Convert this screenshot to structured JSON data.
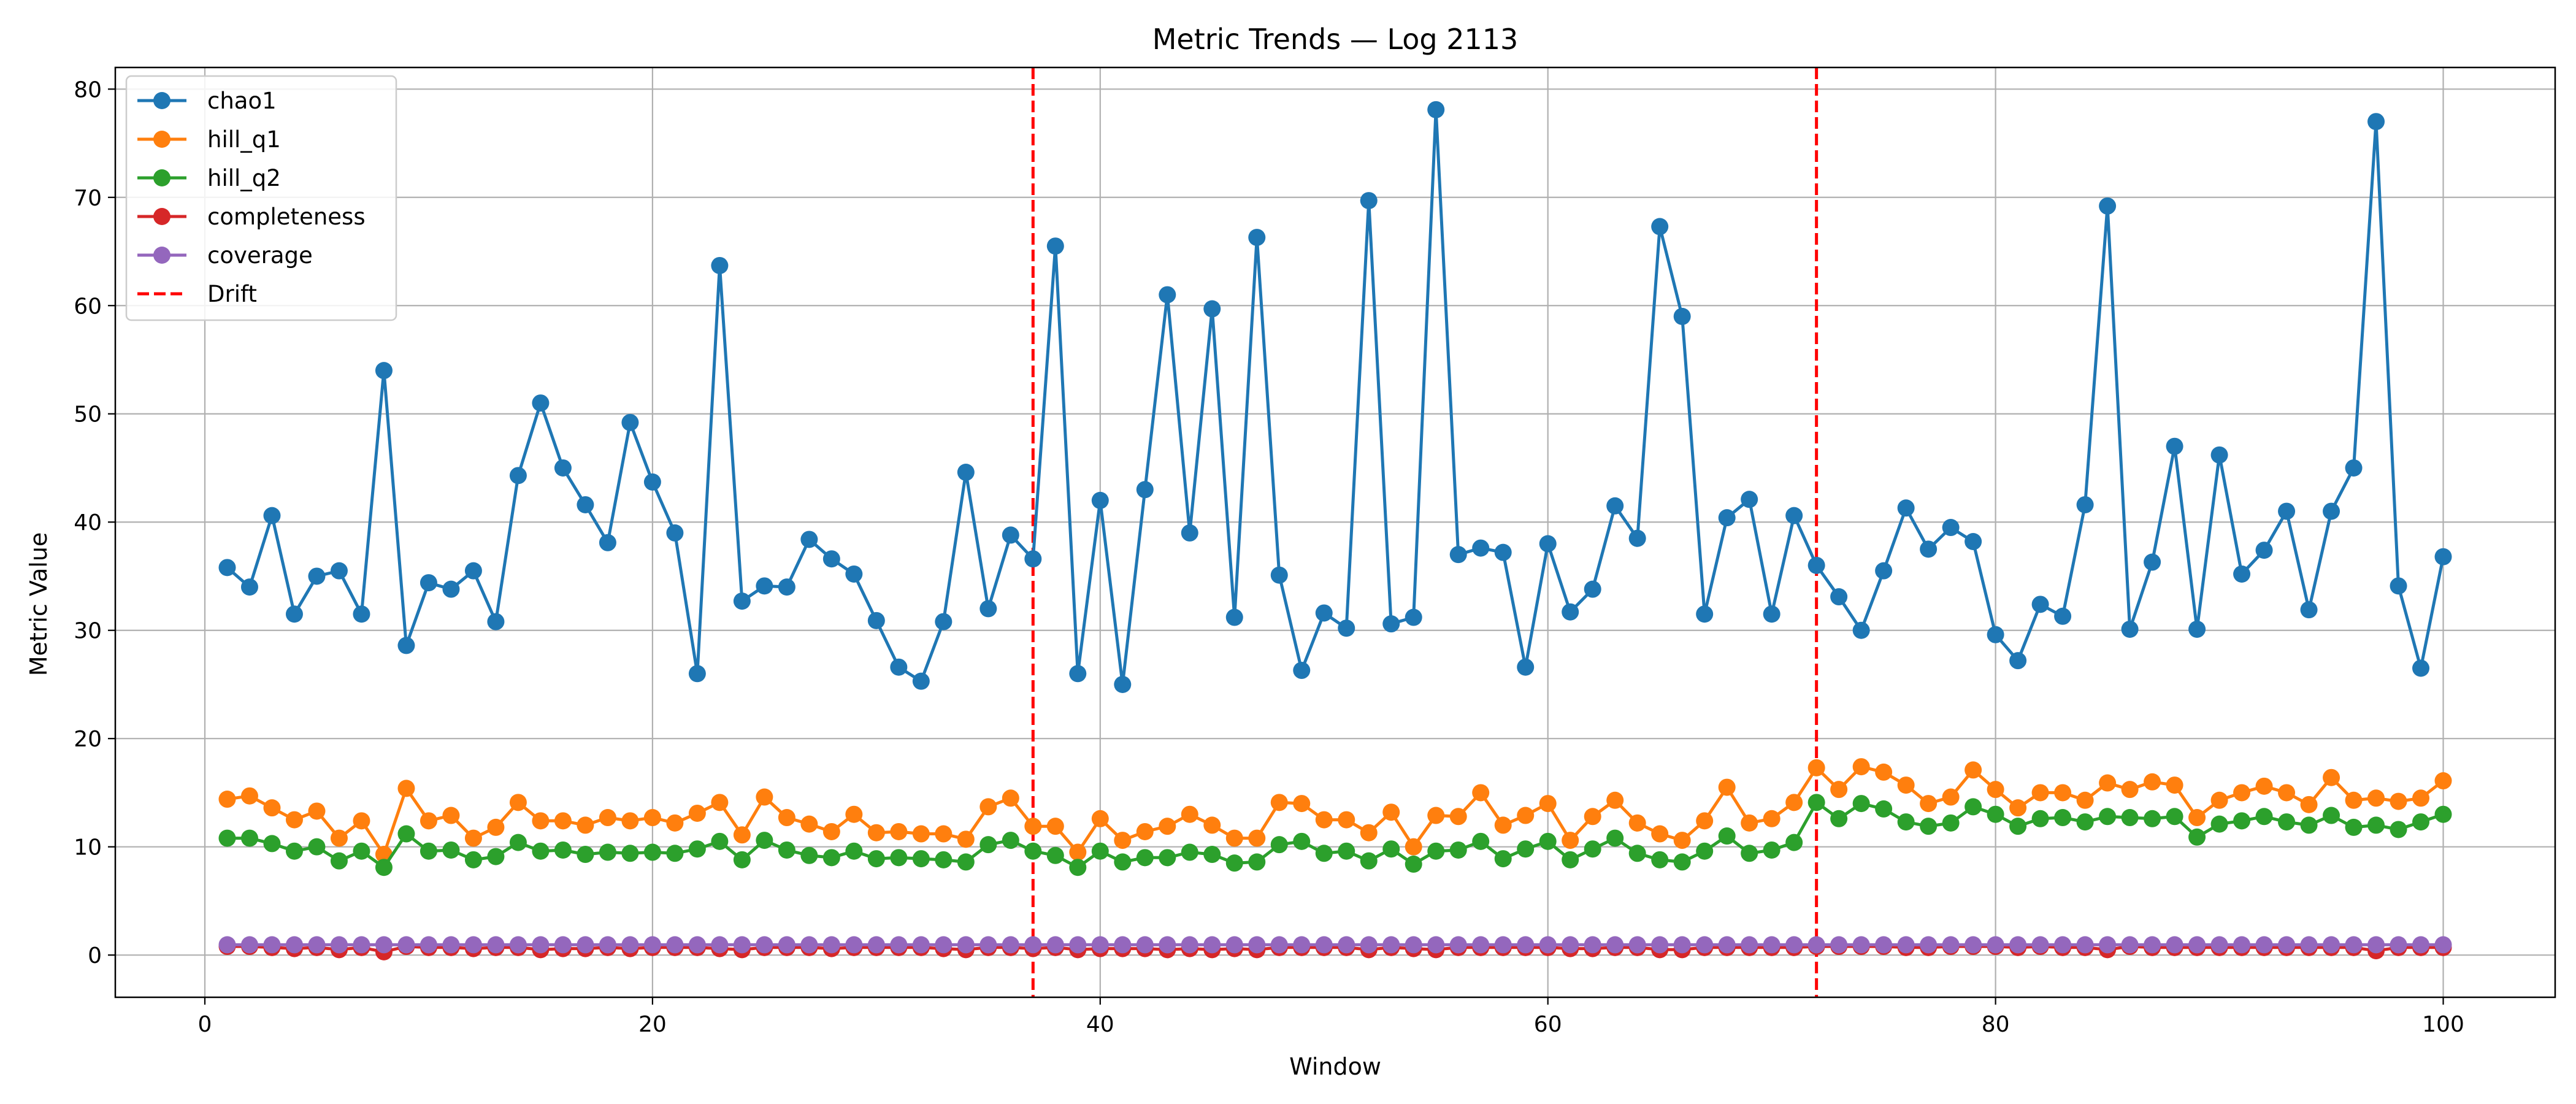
{
  "chart_data": {
    "type": "line",
    "title": "Metric Trends — Log 2113",
    "xlabel": "Window",
    "ylabel": "Metric Value",
    "xlim": [
      -4,
      105
    ],
    "ylim": [
      -3.9,
      82
    ],
    "xticks": [
      0,
      20,
      40,
      60,
      80,
      100
    ],
    "yticks": [
      0,
      10,
      20,
      30,
      40,
      50,
      60,
      70,
      80
    ],
    "grid": true,
    "legend_position": "top-left",
    "x": [
      1,
      2,
      3,
      4,
      5,
      6,
      7,
      8,
      9,
      10,
      11,
      12,
      13,
      14,
      15,
      16,
      17,
      18,
      19,
      20,
      21,
      22,
      23,
      24,
      25,
      26,
      27,
      28,
      29,
      30,
      31,
      32,
      33,
      34,
      35,
      36,
      37,
      38,
      39,
      40,
      41,
      42,
      43,
      44,
      45,
      46,
      47,
      48,
      49,
      50,
      51,
      52,
      53,
      54,
      55,
      56,
      57,
      58,
      59,
      60,
      61,
      62,
      63,
      64,
      65,
      66,
      67,
      68,
      69,
      70,
      71,
      72,
      73,
      74,
      75,
      76,
      77,
      78,
      79,
      80,
      81,
      82,
      83,
      84,
      85,
      86,
      87,
      88,
      89,
      90,
      91,
      92,
      93,
      94,
      95,
      96,
      97,
      98,
      99,
      100
    ],
    "series": [
      {
        "name": "chao1",
        "color": "#1f77b4",
        "values": [
          35.8,
          34.0,
          40.6,
          31.5,
          35.0,
          35.5,
          31.5,
          54.0,
          28.6,
          34.4,
          33.8,
          35.5,
          30.8,
          44.3,
          51.0,
          45.0,
          41.6,
          38.1,
          49.2,
          43.7,
          39.0,
          26.0,
          63.7,
          32.7,
          34.1,
          34.0,
          38.4,
          36.6,
          35.2,
          30.9,
          26.6,
          25.3,
          30.8,
          44.6,
          32.0,
          38.8,
          36.6,
          65.5,
          26.0,
          42.0,
          25.0,
          43.0,
          61.0,
          39.0,
          59.7,
          31.2,
          66.3,
          35.1,
          26.3,
          31.6,
          30.2,
          69.7,
          30.6,
          31.2,
          78.1,
          37.0,
          37.6,
          37.2,
          26.6,
          38.0,
          31.7,
          33.8,
          41.5,
          38.5,
          67.3,
          59.0,
          31.5,
          40.4,
          42.1,
          31.5,
          40.6,
          36.0,
          33.1,
          30.0,
          35.5,
          41.3,
          37.5,
          39.5,
          38.2,
          29.6,
          27.2,
          32.4,
          31.3,
          41.6,
          69.2,
          30.1,
          36.3,
          47.0,
          30.1,
          46.2,
          35.2,
          37.4,
          41.0,
          31.9,
          41.0,
          45.0,
          77.0,
          34.1,
          26.5,
          36.8
        ]
      },
      {
        "name": "hill_q1",
        "color": "#ff7f0e",
        "values": [
          14.4,
          14.7,
          13.6,
          12.5,
          13.3,
          10.8,
          12.4,
          9.3,
          15.4,
          12.4,
          12.9,
          10.8,
          11.8,
          14.1,
          12.4,
          12.4,
          12.0,
          12.7,
          12.4,
          12.7,
          12.2,
          13.1,
          14.1,
          11.1,
          14.6,
          12.7,
          12.1,
          11.4,
          13.0,
          11.3,
          11.4,
          11.2,
          11.2,
          10.7,
          13.7,
          14.5,
          11.9,
          11.9,
          9.5,
          12.6,
          10.6,
          11.4,
          11.9,
          13.0,
          12.0,
          10.8,
          10.8,
          14.1,
          14.0,
          12.5,
          12.5,
          11.3,
          13.2,
          10.0,
          12.9,
          12.8,
          15.0,
          12.0,
          12.9,
          14.0,
          10.6,
          12.8,
          14.3,
          12.2,
          11.2,
          10.6,
          12.4,
          15.5,
          12.2,
          12.6,
          14.1,
          17.3,
          15.3,
          17.4,
          16.9,
          15.7,
          14.0,
          14.6,
          17.1,
          15.3,
          13.6,
          15.0,
          15.0,
          14.3,
          15.9,
          15.3,
          16.0,
          15.7,
          12.7,
          14.3,
          15.0,
          15.6,
          15.0,
          13.9,
          16.4,
          14.3,
          14.5,
          14.2,
          14.5,
          16.1
        ]
      },
      {
        "name": "hill_q2",
        "color": "#2ca02c",
        "values": [
          10.8,
          10.8,
          10.3,
          9.6,
          10.0,
          8.7,
          9.6,
          8.1,
          11.2,
          9.6,
          9.7,
          8.8,
          9.1,
          10.4,
          9.6,
          9.7,
          9.3,
          9.5,
          9.4,
          9.5,
          9.4,
          9.8,
          10.5,
          8.8,
          10.6,
          9.7,
          9.2,
          9.0,
          9.6,
          8.9,
          9.0,
          8.9,
          8.8,
          8.6,
          10.2,
          10.6,
          9.6,
          9.2,
          8.1,
          9.6,
          8.6,
          9.0,
          9.0,
          9.5,
          9.3,
          8.5,
          8.6,
          10.2,
          10.5,
          9.4,
          9.6,
          8.7,
          9.8,
          8.4,
          9.6,
          9.7,
          10.5,
          8.9,
          9.8,
          10.5,
          8.8,
          9.8,
          10.8,
          9.4,
          8.8,
          8.6,
          9.6,
          11.0,
          9.4,
          9.7,
          10.4,
          14.1,
          12.6,
          14.0,
          13.5,
          12.3,
          11.9,
          12.2,
          13.7,
          13.0,
          11.9,
          12.6,
          12.7,
          12.3,
          12.8,
          12.7,
          12.6,
          12.8,
          10.9,
          12.1,
          12.4,
          12.8,
          12.3,
          12.0,
          12.9,
          11.8,
          12.0,
          11.6,
          12.3,
          13.0
        ]
      },
      {
        "name": "completeness",
        "color": "#d62728",
        "values": [
          0.8,
          0.8,
          0.7,
          0.6,
          0.7,
          0.5,
          0.7,
          0.3,
          0.8,
          0.7,
          0.7,
          0.6,
          0.7,
          0.7,
          0.5,
          0.6,
          0.6,
          0.7,
          0.6,
          0.7,
          0.7,
          0.7,
          0.6,
          0.5,
          0.7,
          0.7,
          0.7,
          0.6,
          0.7,
          0.7,
          0.7,
          0.7,
          0.6,
          0.5,
          0.7,
          0.7,
          0.6,
          0.7,
          0.5,
          0.6,
          0.6,
          0.6,
          0.5,
          0.6,
          0.5,
          0.6,
          0.5,
          0.7,
          0.7,
          0.7,
          0.7,
          0.5,
          0.7,
          0.6,
          0.5,
          0.7,
          0.7,
          0.7,
          0.7,
          0.7,
          0.6,
          0.6,
          0.7,
          0.7,
          0.5,
          0.5,
          0.7,
          0.7,
          0.7,
          0.7,
          0.7,
          0.8,
          0.8,
          0.8,
          0.8,
          0.7,
          0.7,
          0.8,
          0.8,
          0.8,
          0.7,
          0.8,
          0.7,
          0.7,
          0.5,
          0.8,
          0.7,
          0.7,
          0.7,
          0.7,
          0.7,
          0.7,
          0.7,
          0.7,
          0.7,
          0.7,
          0.4,
          0.7,
          0.7,
          0.7
        ]
      },
      {
        "name": "coverage",
        "color": "#9467bd",
        "values": [
          0.95,
          0.95,
          0.95,
          0.95,
          0.95,
          0.95,
          0.95,
          0.95,
          0.95,
          0.95,
          0.95,
          0.95,
          0.95,
          0.95,
          0.95,
          0.95,
          0.95,
          0.95,
          0.95,
          0.95,
          0.95,
          0.95,
          0.95,
          0.95,
          0.95,
          0.95,
          0.95,
          0.95,
          0.95,
          0.95,
          0.95,
          0.95,
          0.95,
          0.95,
          0.95,
          0.95,
          0.95,
          0.95,
          0.95,
          0.95,
          0.95,
          0.95,
          0.95,
          0.95,
          0.95,
          0.95,
          0.95,
          0.95,
          0.95,
          0.95,
          0.95,
          0.95,
          0.95,
          0.95,
          0.95,
          0.95,
          0.95,
          0.95,
          0.95,
          0.95,
          0.95,
          0.95,
          0.95,
          0.95,
          0.95,
          0.95,
          0.95,
          0.95,
          0.95,
          0.95,
          0.95,
          0.95,
          0.95,
          0.95,
          0.95,
          0.95,
          0.95,
          0.95,
          0.95,
          0.95,
          0.95,
          0.95,
          0.95,
          0.95,
          0.95,
          0.95,
          0.95,
          0.95,
          0.95,
          0.95,
          0.95,
          0.95,
          0.95,
          0.95,
          0.95,
          0.95,
          0.95,
          0.95,
          0.95,
          0.95
        ]
      }
    ],
    "drift": {
      "name": "Drift",
      "color": "#ff0000",
      "x": [
        37,
        72
      ]
    }
  }
}
